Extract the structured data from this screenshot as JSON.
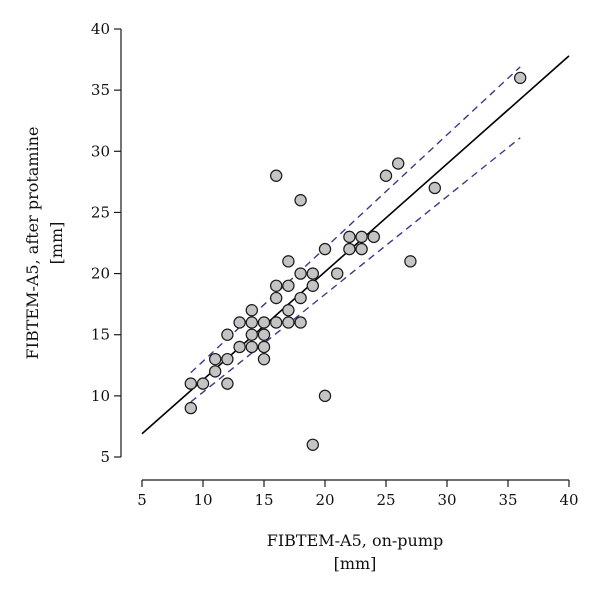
{
  "chart_data": {
    "type": "scatter",
    "title": "",
    "xlabel": "FIBTEM-A5, on-pump",
    "xunit": "[mm]",
    "ylabel": "FIBTEM-A5, after protamine",
    "yunit": "[mm]",
    "xlim": [
      5,
      40
    ],
    "ylim": [
      5,
      40
    ],
    "xticks": [
      5,
      10,
      15,
      20,
      25,
      30,
      35,
      40
    ],
    "yticks": [
      5,
      10,
      15,
      20,
      25,
      30,
      35,
      40
    ],
    "grid": false,
    "legend": "none",
    "points": [
      [
        9,
        9
      ],
      [
        9,
        11
      ],
      [
        10,
        11
      ],
      [
        11,
        12
      ],
      [
        11,
        13
      ],
      [
        12,
        11
      ],
      [
        12,
        13
      ],
      [
        12,
        15
      ],
      [
        13,
        14
      ],
      [
        13,
        16
      ],
      [
        14,
        14
      ],
      [
        14,
        15
      ],
      [
        14,
        16
      ],
      [
        14,
        17
      ],
      [
        15,
        13
      ],
      [
        15,
        14
      ],
      [
        15,
        15
      ],
      [
        15,
        16
      ],
      [
        16,
        16
      ],
      [
        16,
        18
      ],
      [
        16,
        19
      ],
      [
        16,
        28
      ],
      [
        17,
        16
      ],
      [
        17,
        17
      ],
      [
        17,
        19
      ],
      [
        17,
        21
      ],
      [
        18,
        16
      ],
      [
        18,
        18
      ],
      [
        18,
        20
      ],
      [
        18,
        26
      ],
      [
        19,
        6
      ],
      [
        19,
        19
      ],
      [
        19,
        20
      ],
      [
        20,
        10
      ],
      [
        20,
        22
      ],
      [
        21,
        20
      ],
      [
        22,
        22
      ],
      [
        22,
        23
      ],
      [
        23,
        22
      ],
      [
        23,
        23
      ],
      [
        24,
        23
      ],
      [
        25,
        28
      ],
      [
        26,
        29
      ],
      [
        27,
        21
      ],
      [
        29,
        27
      ],
      [
        36,
        36
      ]
    ],
    "regression_line": {
      "x": [
        5,
        40
      ],
      "y": [
        6.9,
        37.8
      ]
    },
    "confidence_band": {
      "upper": {
        "x": [
          9,
          36
        ],
        "y": [
          11.9,
          36.9
        ]
      },
      "lower": {
        "x": [
          9,
          36
        ],
        "y": [
          9.5,
          31.1
        ]
      }
    },
    "colors": {
      "point_fill": "#c4c4c4",
      "point_stroke": "#1a1a1a",
      "regression": "#000000",
      "confidence": "#3a3a8c",
      "axis": "#1a1a1a"
    }
  }
}
